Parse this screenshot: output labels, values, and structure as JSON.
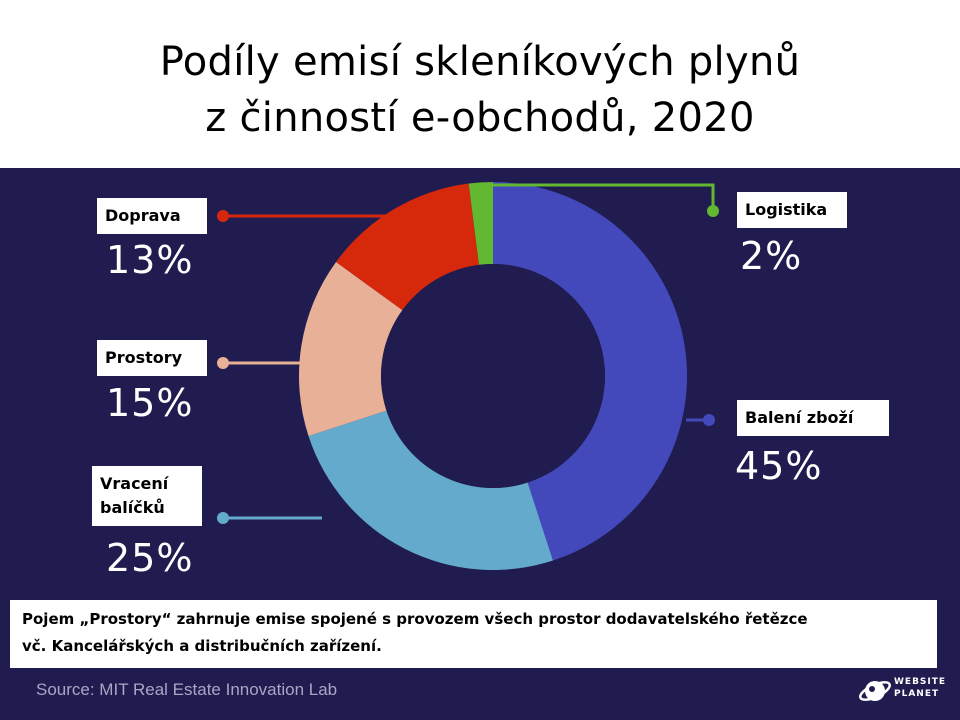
{
  "title": {
    "line1": "Podíly emisí skleníkových plynů",
    "line2": "z činností e-obchodů, 2020"
  },
  "chart_data": {
    "type": "pie",
    "donut": true,
    "categories": [
      "Balení zboží",
      "Vracení balíčků",
      "Prostory",
      "Doprava",
      "Logistika"
    ],
    "values": [
      45,
      25,
      15,
      13,
      2
    ],
    "unit": "%",
    "colors": [
      "#4349bb",
      "#63aacd",
      "#e8b197",
      "#d6290c",
      "#62b830"
    ],
    "percent_labels": [
      "45%",
      "25%",
      "15%",
      "13%",
      "2%"
    ]
  },
  "labels": {
    "baleni": "Balení zboží",
    "vraceni_line1": "Vracení",
    "vraceni_line2": "balíčků",
    "prostory": "Prostory",
    "doprava": "Doprava",
    "logistika": "Logistika"
  },
  "percentages": {
    "baleni": "45%",
    "vraceni": "25%",
    "prostory": "15%",
    "doprava": "13%",
    "logistika": "2%"
  },
  "note": {
    "line1": "Pojem „Prostory“ zahrnuje emise spojené s provozem všech prostor dodavatelského řetězce",
    "line2": "vč. Kancelářských a distribučních zařízení."
  },
  "source": "Source: MIT Real Estate Innovation Lab",
  "logo": {
    "line1": "WEBSITE",
    "line2": "PLANET"
  },
  "colors": {
    "panel_background": "#211c4f",
    "hole": "#211c4f"
  }
}
